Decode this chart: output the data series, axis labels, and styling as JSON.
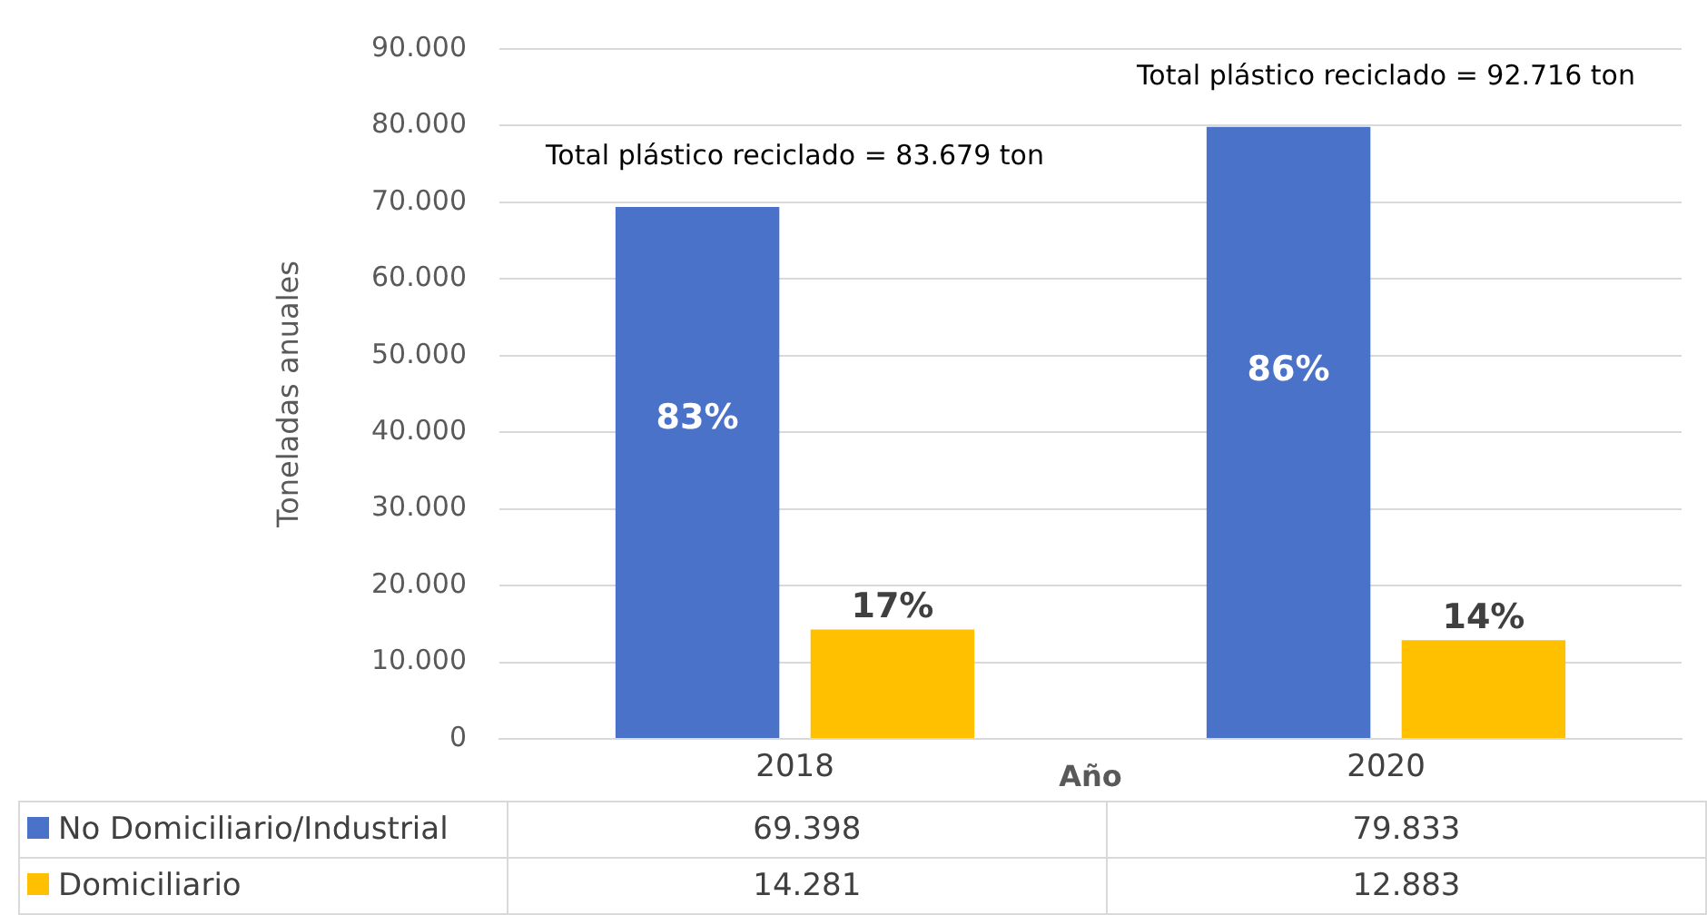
{
  "chart_data": {
    "type": "bar",
    "ylabel": "Toneladas anuales",
    "xlabel": "Año",
    "categories": [
      "2018",
      "2020"
    ],
    "series": [
      {
        "name": "No Domiciliario/Industrial",
        "color": "#4a72c8",
        "values": [
          69398,
          79833
        ],
        "value_labels": [
          "69.398",
          "79.833"
        ]
      },
      {
        "name": "Domiciliario",
        "color": "#ffc000",
        "values": [
          14281,
          12883
        ],
        "value_labels": [
          "14.281",
          "12.883"
        ]
      }
    ],
    "ylim": [
      0,
      90000
    ],
    "yticks": [
      0,
      {
        "value": 10000,
        "label": "10.000"
      },
      {
        "value": 20000,
        "label": "20.000"
      },
      {
        "value": 30000,
        "label": "30.000"
      },
      {
        "value": 40000,
        "label": "40.000"
      },
      {
        "value": 50000,
        "label": "50.000"
      },
      {
        "value": 60000,
        "label": "60.000"
      },
      {
        "value": 70000,
        "label": "70.000"
      },
      {
        "value": 80000,
        "label": "80.000"
      },
      {
        "value": 90000,
        "label": "90.000"
      }
    ],
    "grid": "y",
    "legend": "bottom",
    "annotations": [
      "Total plástico reciclado = 83.679 ton",
      "Total plástico reciclado = 92.716 ton",
      "83%",
      "17%",
      "86%",
      "14%"
    ]
  }
}
